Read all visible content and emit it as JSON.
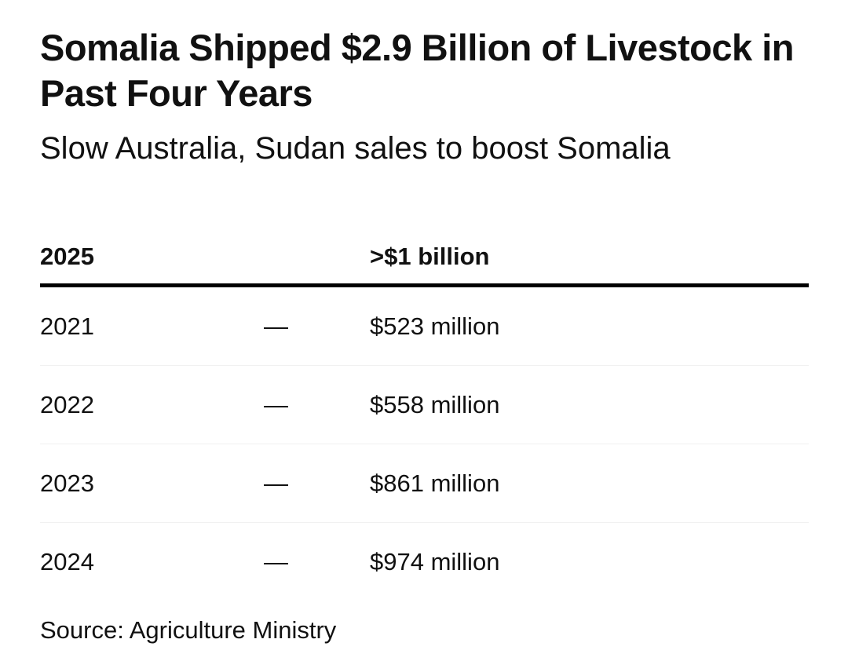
{
  "chart_data": {
    "type": "table",
    "title": "Somalia Shipped $2.9 Billion of Livestock in Past Four Years",
    "subtitle": "Slow Australia, Sudan sales to boost Somalia",
    "header": {
      "year": "2025",
      "dash": "",
      "value": ">$1 billion"
    },
    "rows": [
      {
        "year": "2021",
        "dash": "—",
        "value": "$523 million"
      },
      {
        "year": "2022",
        "dash": "—",
        "value": "$558 million"
      },
      {
        "year": "2023",
        "dash": "—",
        "value": "$861 million"
      },
      {
        "year": "2024",
        "dash": "—",
        "value": "$974 million"
      }
    ],
    "source": "Source: Agriculture Ministry"
  }
}
